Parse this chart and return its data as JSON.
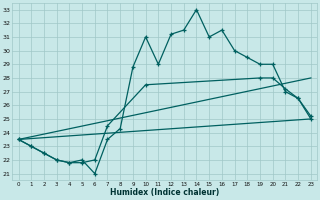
{
  "xlabel": "Humidex (Indice chaleur)",
  "bg_color": "#c8e8e8",
  "line_color": "#006060",
  "grid_color": "#a0c8c8",
  "xlim_min": -0.5,
  "xlim_max": 23.5,
  "ylim_min": 20.5,
  "ylim_max": 33.5,
  "xticks": [
    0,
    1,
    2,
    3,
    4,
    5,
    6,
    7,
    8,
    9,
    10,
    11,
    12,
    13,
    14,
    15,
    16,
    17,
    18,
    19,
    20,
    21,
    22,
    23
  ],
  "yticks": [
    21,
    22,
    23,
    24,
    25,
    26,
    27,
    28,
    29,
    30,
    31,
    32,
    33
  ],
  "line1_x": [
    0,
    1,
    2,
    3,
    4,
    5,
    6,
    7,
    8,
    9,
    10,
    11,
    12,
    13,
    14,
    15,
    16,
    17,
    18,
    19,
    20,
    21,
    22,
    23
  ],
  "line1_y": [
    23.5,
    23.0,
    22.5,
    22.0,
    21.8,
    22.0,
    21.0,
    23.5,
    24.3,
    28.8,
    31.0,
    29.0,
    31.2,
    31.5,
    33.0,
    31.0,
    31.5,
    30.0,
    29.5,
    29.0,
    29.0,
    27.0,
    26.5,
    25.0
  ],
  "line2_x": [
    0,
    1,
    2,
    3,
    4,
    5,
    6,
    7,
    10,
    19,
    20,
    21,
    22,
    23
  ],
  "line2_y": [
    23.5,
    23.0,
    22.5,
    22.0,
    21.8,
    21.8,
    22.0,
    24.5,
    27.5,
    28.0,
    28.0,
    27.2,
    26.5,
    25.2
  ],
  "line3_x": [
    0,
    23
  ],
  "line3_y": [
    23.5,
    28.0
  ],
  "line4_x": [
    0,
    23
  ],
  "line4_y": [
    23.5,
    25.0
  ]
}
